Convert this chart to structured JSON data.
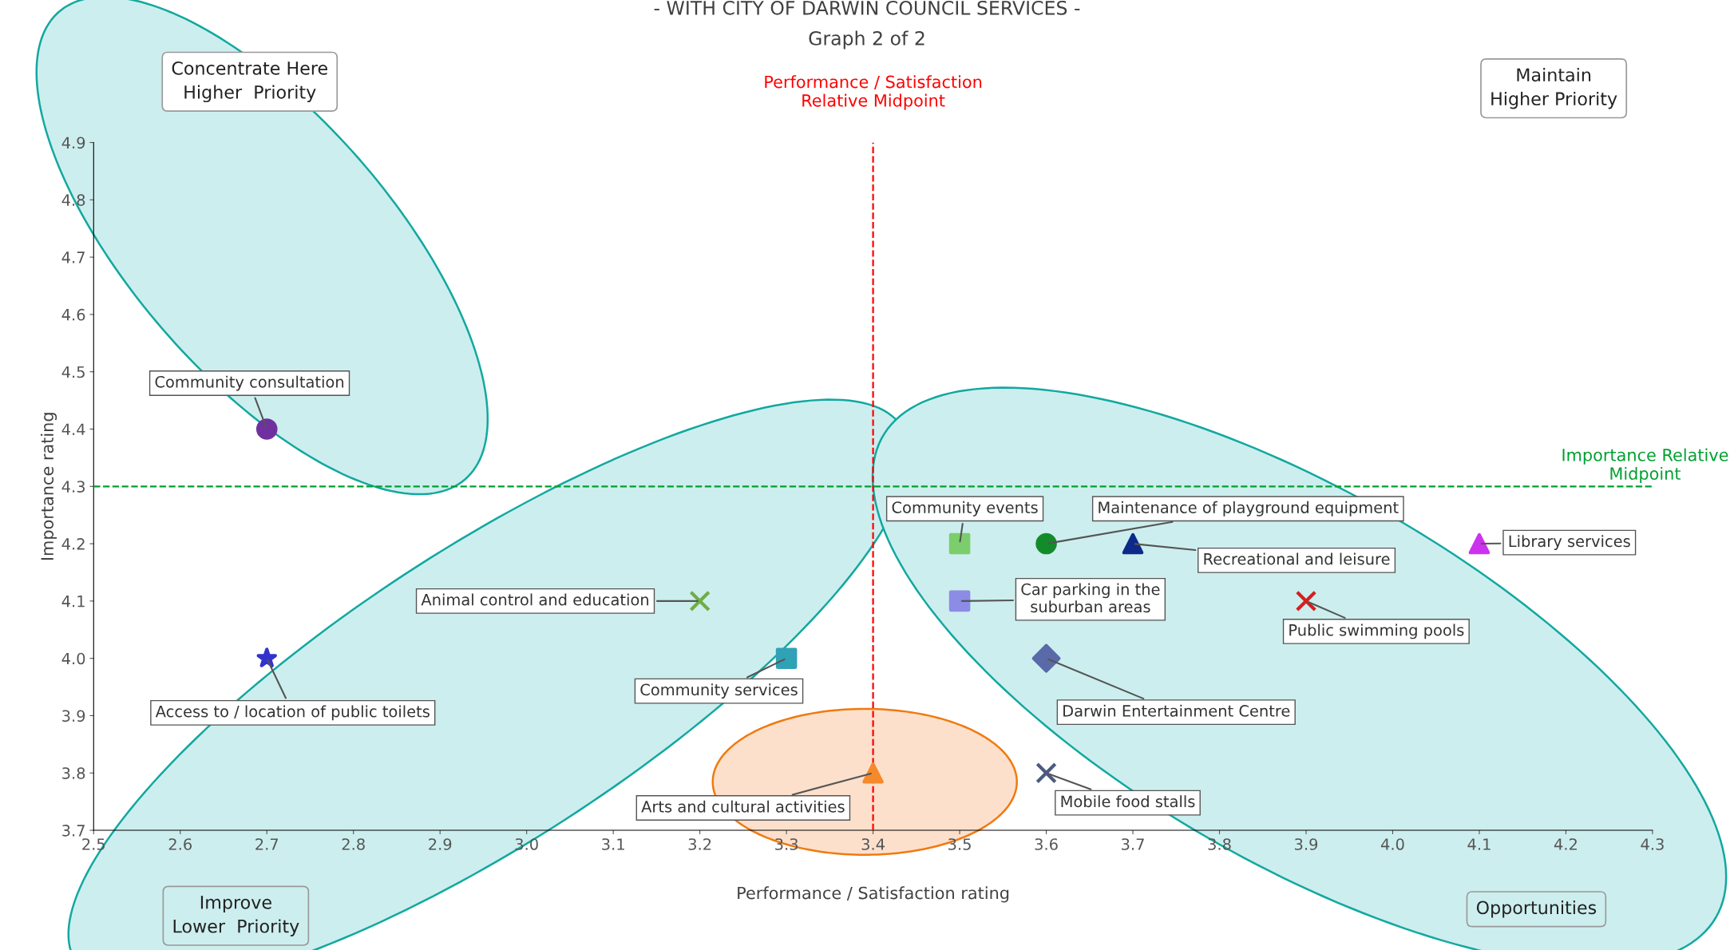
{
  "chart_data": {
    "type": "scatter",
    "title": "- WITH CITY OF DARWIN COUNCIL SERVICES -",
    "subtitle": "Graph 2 of 2",
    "xlabel": "Performance / Satisfaction rating",
    "ylabel": "Importance rating",
    "xlim": [
      2.5,
      4.3
    ],
    "xticks": [
      2.5,
      2.6,
      2.7,
      2.8,
      2.9,
      {
        "value": 3,
        "label": "3.0"
      },
      3.1,
      3.2,
      3.3,
      3.4,
      3.5,
      3.6,
      3.7,
      3.8,
      3.9,
      {
        "value": 4,
        "label": "4.0"
      },
      4.1,
      4.2,
      4.3
    ],
    "ylim": [
      3.7,
      4.9
    ],
    "yticks": [
      3.7,
      3.8,
      3.9,
      {
        "value": 4,
        "label": "4.0"
      },
      4.1,
      4.2,
      4.3,
      4.4,
      4.5,
      4.6,
      4.7,
      4.8,
      4.9
    ],
    "grid": false,
    "legend": false,
    "series": [
      {
        "name": "Community consultation",
        "color": "#7030a0",
        "marker": "circle",
        "x": [
          2.7
        ],
        "values": [
          4.4
        ]
      },
      {
        "name": "Animal control and education",
        "color": "#70ad47",
        "marker": "cross",
        "x": [
          3.2
        ],
        "values": [
          4.1
        ]
      },
      {
        "name": "Access to / location of public toilets",
        "color": "#3333cc",
        "marker": "star",
        "x": [
          2.7
        ],
        "values": [
          4.0
        ]
      },
      {
        "name": "Community services",
        "color": "#31a1b5",
        "marker": "square",
        "x": [
          3.3
        ],
        "values": [
          4.0
        ]
      },
      {
        "name": "Arts and cultural activities",
        "color": "#f58a2c",
        "marker": "triangle",
        "x": [
          3.4
        ],
        "values": [
          3.8
        ]
      },
      {
        "name": "Community events",
        "color": "#7ccd6b",
        "marker": "square",
        "x": [
          3.5
        ],
        "values": [
          4.2
        ]
      },
      {
        "name": "Maintenance of playground equipment",
        "color": "#128c2a",
        "marker": "circle",
        "x": [
          3.6
        ],
        "values": [
          4.2
        ]
      },
      {
        "name": "Recreational and leisure",
        "color": "#0d2a8a",
        "marker": "triangle",
        "x": [
          3.7
        ],
        "values": [
          4.2
        ]
      },
      {
        "name": "Library services",
        "color": "#cc33ee",
        "marker": "triangle",
        "x": [
          4.1
        ],
        "values": [
          4.2
        ]
      },
      {
        "name": "Car parking in the\nsuburban areas",
        "color": "#8c8ce6",
        "marker": "square",
        "x": [
          3.5
        ],
        "values": [
          4.1
        ]
      },
      {
        "name": "Public swimming pools",
        "color": "#d42020",
        "marker": "cross",
        "x": [
          3.9
        ],
        "values": [
          4.1
        ]
      },
      {
        "name": "Darwin Entertainment Centre",
        "color": "#5a6aa8",
        "marker": "diamond",
        "x": [
          3.6
        ],
        "values": [
          4.0
        ]
      },
      {
        "name": "Mobile food stalls",
        "color": "#4d5a80",
        "marker": "cross",
        "x": [
          3.6
        ],
        "values": [
          3.8
        ]
      }
    ],
    "ref_lines": [
      {
        "axis": "x",
        "value": 3.4,
        "label": "Performance / Satisfaction\nRelative Midpoint",
        "color": "#ff0000",
        "line_style": "dashed"
      },
      {
        "axis": "y",
        "value": 4.3,
        "label": "Importance Relative\nMidpoint",
        "color": "#00a030",
        "line_style": "dashed"
      }
    ],
    "annotations": [
      "Concentrate Here\nHigher  Priority",
      "Maintain\nHigher Priority",
      "Improve\nLower  Priority",
      "Opportunities"
    ]
  }
}
